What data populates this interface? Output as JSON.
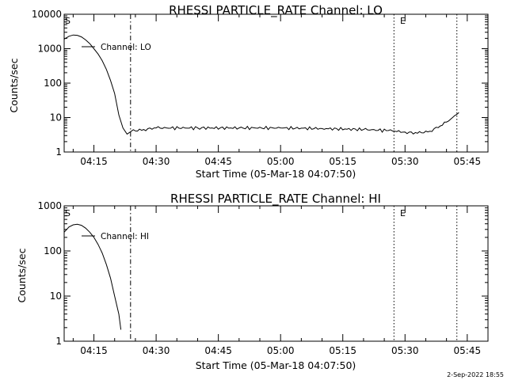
{
  "charts": [
    {
      "title": "RHESSI PARTICLE_RATE Channel: LO",
      "ylabel": "Counts/sec",
      "xlabel": "Start Time (05-Mar-18 04:07:50)",
      "legend": "Channel: LO",
      "marker_start": "S",
      "marker_end": "E"
    },
    {
      "title": "RHESSI PARTICLE_RATE Channel: HI",
      "ylabel": "Counts/sec",
      "xlabel": "Start Time (05-Mar-18 04:07:50)",
      "legend": "Channel: HI",
      "marker_start": "S",
      "marker_end": "E"
    }
  ],
  "footer": "2-Sep-2022 18:55",
  "chart_data": [
    {
      "type": "line",
      "title": "RHESSI PARTICLE_RATE Channel: LO",
      "xlabel": "Start Time (05-Mar-18 04:07:50)",
      "ylabel": "Counts/sec",
      "y_scale": "log",
      "ylim": [
        1,
        10000
      ],
      "xlim_minutes_after_0400": [
        7.83,
        110
      ],
      "x_ticks": [
        "04:15",
        "04:30",
        "04:45",
        "05:00",
        "05:15",
        "05:30",
        "05:45"
      ],
      "y_ticks": [
        "1",
        "10",
        "100",
        "1000",
        "10000"
      ],
      "vlines": [
        {
          "time": "04:23:50",
          "style": "dash-dot"
        },
        {
          "time": "05:27:20",
          "style": "dotted"
        },
        {
          "time": "05:42:30",
          "style": "dotted"
        }
      ],
      "series": [
        {
          "name": "Channel: LO",
          "points": [
            [
              "04:07:50",
              1900
            ],
            [
              "04:09:00",
              2300
            ],
            [
              "04:10:00",
              2500
            ],
            [
              "04:11:00",
              2450
            ],
            [
              "04:12:00",
              2200
            ],
            [
              "04:13:00",
              1800
            ],
            [
              "04:14:00",
              1400
            ],
            [
              "04:15:00",
              1000
            ],
            [
              "04:16:00",
              700
            ],
            [
              "04:17:00",
              450
            ],
            [
              "04:18:00",
              250
            ],
            [
              "04:19:00",
              120
            ],
            [
              "04:20:00",
              50
            ],
            [
              "04:21:00",
              12
            ],
            [
              "04:22:00",
              5
            ],
            [
              "04:23:00",
              3.3
            ],
            [
              "04:24:00",
              4
            ],
            [
              "04:27:00",
              4.5
            ],
            [
              "04:30:00",
              5
            ],
            [
              "04:40:00",
              5
            ],
            [
              "04:50:00",
              5
            ],
            [
              "05:00:00",
              5
            ],
            [
              "05:10:00",
              4.8
            ],
            [
              "05:20:00",
              4.5
            ],
            [
              "05:26:00",
              4.2
            ],
            [
              "05:30:00",
              3.8
            ],
            [
              "05:33:00",
              3.5
            ],
            [
              "05:36:00",
              4
            ],
            [
              "05:39:00",
              6
            ],
            [
              "05:41:00",
              9
            ],
            [
              "05:43:00",
              14
            ]
          ]
        }
      ]
    },
    {
      "type": "line",
      "title": "RHESSI PARTICLE_RATE Channel: HI",
      "xlabel": "Start Time (05-Mar-18 04:07:50)",
      "ylabel": "Counts/sec",
      "y_scale": "log",
      "ylim": [
        1,
        1000
      ],
      "xlim_minutes_after_0400": [
        7.83,
        110
      ],
      "x_ticks": [
        "04:15",
        "04:30",
        "04:45",
        "05:00",
        "05:15",
        "05:30",
        "05:45"
      ],
      "y_ticks": [
        "1",
        "10",
        "100",
        "1000"
      ],
      "vlines": [
        {
          "time": "04:23:50",
          "style": "dash-dot"
        },
        {
          "time": "05:27:20",
          "style": "dotted"
        },
        {
          "time": "05:42:30",
          "style": "dotted"
        }
      ],
      "series": [
        {
          "name": "Channel: HI",
          "points": [
            [
              "04:07:50",
              260
            ],
            [
              "04:09:00",
              340
            ],
            [
              "04:10:00",
              380
            ],
            [
              "04:11:00",
              390
            ],
            [
              "04:12:00",
              370
            ],
            [
              "04:13:00",
              320
            ],
            [
              "04:14:00",
              260
            ],
            [
              "04:15:00",
              200
            ],
            [
              "04:16:00",
              140
            ],
            [
              "04:17:00",
              90
            ],
            [
              "04:18:00",
              50
            ],
            [
              "04:19:00",
              25
            ],
            [
              "04:20:00",
              10
            ],
            [
              "04:21:00",
              4
            ],
            [
              "04:21:30",
              1.8
            ]
          ]
        }
      ]
    }
  ]
}
